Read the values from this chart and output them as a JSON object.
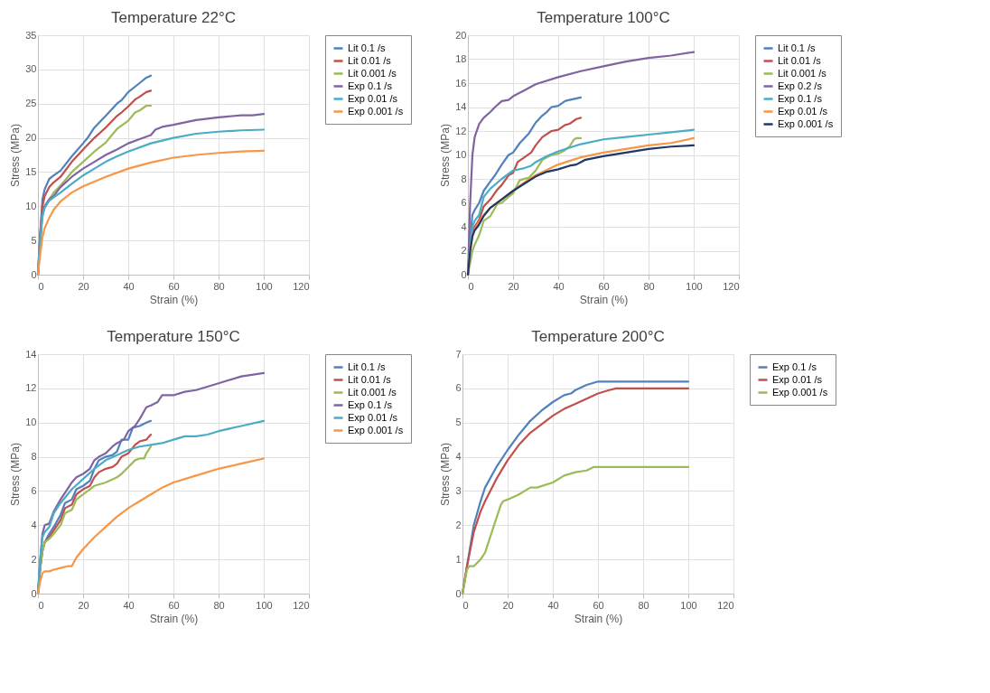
{
  "chart_data": [
    {
      "type": "line",
      "title": "Temperature 22°C",
      "xlabel": "Strain (%)",
      "ylabel": "Stress (MPa)",
      "xlim": [
        0,
        120
      ],
      "xticks": [
        0,
        20,
        40,
        60,
        80,
        100,
        120
      ],
      "ylim": [
        0,
        35
      ],
      "yticks": [
        0,
        5,
        10,
        15,
        20,
        25,
        30,
        35
      ],
      "grid": true,
      "legend": "right",
      "series": [
        {
          "name": "Lit 0.1 /s",
          "color": "#4f81bd",
          "x": [
            0,
            1,
            2,
            3,
            5,
            7,
            10,
            15,
            20,
            22,
            25,
            30,
            35,
            37,
            40,
            45,
            48,
            50
          ],
          "values": [
            0,
            6,
            11,
            12.5,
            14,
            14.5,
            15.2,
            17.3,
            19.2,
            20,
            21.5,
            23.2,
            25,
            25.5,
            26.7,
            28,
            28.8,
            29.1
          ]
        },
        {
          "name": "Lit 0.01 /s",
          "color": "#c0504d",
          "x": [
            0,
            1,
            2,
            3,
            5,
            7,
            10,
            15,
            20,
            25,
            30,
            35,
            37,
            40,
            43,
            45,
            48,
            50
          ],
          "values": [
            0,
            6,
            10,
            11.5,
            12.8,
            13.5,
            14.3,
            16.5,
            18.3,
            20,
            21.5,
            23.2,
            23.7,
            24.6,
            25.6,
            26,
            26.7,
            26.9
          ]
        },
        {
          "name": "Lit 0.001 /s",
          "color": "#9bbb59",
          "x": [
            0,
            1,
            2,
            3,
            5,
            7,
            10,
            15,
            20,
            25,
            30,
            33,
            35,
            40,
            43,
            45,
            48,
            50
          ],
          "values": [
            0,
            5,
            9,
            10,
            11,
            12,
            13,
            15,
            16.5,
            18,
            19.3,
            20.5,
            21.3,
            22.5,
            23.7,
            24,
            24.7,
            24.7
          ]
        },
        {
          "name": "Exp 0.1 /s",
          "color": "#8064a2",
          "x": [
            0,
            1,
            2,
            3,
            5,
            7,
            10,
            15,
            20,
            25,
            30,
            35,
            40,
            45,
            50,
            52,
            55,
            60,
            70,
            80,
            90,
            95,
            100
          ],
          "values": [
            0,
            5,
            9,
            10,
            11,
            11.5,
            12.8,
            14.3,
            15.5,
            16.5,
            17.5,
            18.3,
            19.2,
            19.8,
            20.4,
            21.2,
            21.6,
            21.9,
            22.6,
            23,
            23.3,
            23.3,
            23.5
          ]
        },
        {
          "name": "Exp 0.01 /s",
          "color": "#4bacc6",
          "x": [
            0,
            1,
            2,
            3,
            5,
            7,
            10,
            15,
            20,
            25,
            30,
            35,
            40,
            50,
            60,
            70,
            80,
            90,
            100
          ],
          "values": [
            0,
            5,
            8.5,
            9.8,
            10.8,
            11.3,
            12,
            13.3,
            14.5,
            15.5,
            16.5,
            17.3,
            18,
            19.2,
            20,
            20.6,
            20.9,
            21.1,
            21.2
          ]
        },
        {
          "name": "Exp 0.001 /s",
          "color": "#f79646",
          "x": [
            0,
            1,
            2,
            3,
            5,
            7,
            10,
            15,
            20,
            25,
            30,
            40,
            50,
            60,
            70,
            80,
            90,
            100
          ],
          "values": [
            0,
            3,
            5.5,
            6.8,
            8.3,
            9.5,
            10.7,
            12,
            12.9,
            13.6,
            14.3,
            15.5,
            16.4,
            17.1,
            17.5,
            17.8,
            18,
            18.1
          ]
        }
      ]
    },
    {
      "type": "line",
      "title": "Temperature 100°C",
      "xlabel": "Strain (%)",
      "ylabel": "Stress (MPa)",
      "xlim": [
        0,
        120
      ],
      "xticks": [
        0,
        20,
        40,
        60,
        80,
        100,
        120
      ],
      "ylim": [
        0,
        20
      ],
      "yticks": [
        0,
        2,
        4,
        6,
        8,
        10,
        12,
        14,
        16,
        18,
        20
      ],
      "grid": true,
      "legend": "right",
      "series": [
        {
          "name": "Lit 0.1 /s",
          "color": "#4f81bd",
          "x": [
            0,
            1,
            2,
            3,
            5,
            7,
            10,
            12,
            15,
            18,
            20,
            23,
            27,
            30,
            33,
            35,
            37,
            40,
            43,
            45,
            50
          ],
          "values": [
            0,
            3,
            5,
            5.4,
            6,
            7,
            7.8,
            8.3,
            9.2,
            10,
            10.2,
            11,
            11.8,
            12.7,
            13.3,
            13.6,
            14,
            14.1,
            14.5,
            14.6,
            14.8
          ]
        },
        {
          "name": "Lit 0.01 /s",
          "color": "#c0504d",
          "x": [
            0,
            1,
            2,
            3,
            5,
            7,
            10,
            13,
            15,
            18,
            20,
            22,
            25,
            28,
            30,
            33,
            37,
            40,
            43,
            45,
            48,
            50
          ],
          "values": [
            0,
            2.5,
            3.6,
            4,
            4.6,
            5.7,
            6.3,
            7.1,
            7.5,
            8.3,
            8.5,
            9.4,
            9.8,
            10.2,
            10.8,
            11.5,
            12,
            12.1,
            12.5,
            12.6,
            13,
            13.1
          ]
        },
        {
          "name": "Lit 0.001 /s",
          "color": "#9bbb59",
          "x": [
            0,
            1,
            2,
            3,
            5,
            7,
            10,
            13,
            15,
            18,
            20,
            23,
            27,
            30,
            33,
            37,
            40,
            43,
            45,
            47,
            48,
            50
          ],
          "values": [
            0,
            1,
            2,
            2.5,
            3.3,
            4.5,
            4.9,
            5.9,
            6,
            6.5,
            6.8,
            7.9,
            8.1,
            8.7,
            9.6,
            10,
            10.1,
            10.4,
            10.7,
            11.3,
            11.4,
            11.4
          ]
        },
        {
          "name": "Exp 0.2 /s",
          "color": "#8064a2",
          "x": [
            0,
            1,
            2,
            3,
            5,
            7,
            10,
            12,
            15,
            18,
            20,
            25,
            30,
            40,
            50,
            60,
            70,
            80,
            90,
            100
          ],
          "values": [
            0,
            6,
            10,
            11.5,
            12.6,
            13.1,
            13.6,
            14,
            14.5,
            14.6,
            14.9,
            15.4,
            15.9,
            16.5,
            17,
            17.4,
            17.8,
            18.1,
            18.3,
            18.6
          ]
        },
        {
          "name": "Exp 0.1 /s",
          "color": "#4bacc6",
          "x": [
            0,
            1,
            2,
            3,
            5,
            7,
            10,
            15,
            20,
            25,
            28,
            30,
            35,
            40,
            50,
            60,
            70,
            80,
            90,
            100
          ],
          "values": [
            0,
            2.5,
            4,
            4.5,
            5,
            6.5,
            7.2,
            8,
            8.7,
            8.9,
            9.1,
            9.4,
            9.9,
            10.3,
            10.9,
            11.3,
            11.5,
            11.7,
            11.9,
            12.1
          ]
        },
        {
          "name": "Exp 0.01 /s",
          "color": "#f79646",
          "x": [
            0,
            1,
            2,
            3,
            5,
            7,
            10,
            15,
            20,
            25,
            30,
            40,
            50,
            60,
            70,
            80,
            90,
            100
          ],
          "values": [
            0,
            2,
            3.3,
            3.8,
            4.4,
            5,
            5.6,
            6.3,
            7,
            7.7,
            8.3,
            9.2,
            9.8,
            10.2,
            10.5,
            10.8,
            11,
            11.4
          ]
        },
        {
          "name": "Exp 0.001 /s",
          "color": "#1f3864",
          "x": [
            0,
            1,
            2,
            3,
            5,
            7,
            10,
            15,
            20,
            25,
            30,
            35,
            40,
            45,
            48,
            50,
            52,
            60,
            70,
            80,
            90,
            100
          ],
          "values": [
            0,
            2,
            3.2,
            3.7,
            4.2,
            4.9,
            5.6,
            6.3,
            7,
            7.6,
            8.2,
            8.6,
            8.8,
            9.1,
            9.2,
            9.4,
            9.6,
            9.9,
            10.2,
            10.5,
            10.7,
            10.8
          ]
        }
      ]
    },
    {
      "type": "line",
      "title": "Temperature 150°C",
      "xlabel": "Strain (%)",
      "ylabel": "Stress (MPa)",
      "xlim": [
        0,
        120
      ],
      "xticks": [
        0,
        20,
        40,
        60,
        80,
        100,
        120
      ],
      "ylim": [
        0,
        14
      ],
      "yticks": [
        0,
        2,
        4,
        6,
        8,
        10,
        12,
        14
      ],
      "grid": true,
      "legend": "right",
      "series": [
        {
          "name": "Lit 0.1 /s",
          "color": "#4f81bd",
          "x": [
            0,
            1,
            2,
            3,
            5,
            7,
            10,
            12,
            15,
            17,
            20,
            23,
            25,
            27,
            30,
            33,
            35,
            37,
            40,
            42,
            45,
            48,
            50
          ],
          "values": [
            0,
            1.5,
            2.5,
            3,
            3.5,
            3.9,
            4.6,
            5.3,
            5.5,
            6.1,
            6.3,
            6.6,
            7.3,
            7.8,
            8,
            8.1,
            8.3,
            9,
            9,
            9.7,
            9.8,
            10,
            10.1
          ]
        },
        {
          "name": "Lit 0.01 /s",
          "color": "#c0504d",
          "x": [
            0,
            1,
            2,
            3,
            5,
            7,
            10,
            12,
            15,
            17,
            20,
            23,
            25,
            27,
            30,
            33,
            35,
            37,
            40,
            43,
            45,
            48,
            50
          ],
          "values": [
            0,
            1.5,
            2.5,
            3,
            3.3,
            3.7,
            4.3,
            5,
            5.2,
            5.8,
            6.1,
            6.3,
            6.8,
            7.1,
            7.3,
            7.4,
            7.6,
            8,
            8.2,
            8.7,
            8.9,
            9,
            9.3
          ]
        },
        {
          "name": "Lit 0.001 /s",
          "color": "#9bbb59",
          "x": [
            0,
            1,
            2,
            3,
            5,
            7,
            10,
            12,
            15,
            17,
            20,
            23,
            25,
            30,
            35,
            37,
            40,
            43,
            45,
            47,
            48,
            50
          ],
          "values": [
            0,
            1.5,
            2.5,
            3,
            3.2,
            3.5,
            4,
            4.7,
            4.9,
            5.5,
            5.8,
            6.1,
            6.3,
            6.5,
            6.8,
            7,
            7.4,
            7.8,
            7.9,
            7.9,
            8.2,
            8.6
          ]
        },
        {
          "name": "Exp 0.1 /s",
          "color": "#8064a2",
          "x": [
            0,
            1,
            2,
            3,
            5,
            7,
            10,
            12,
            15,
            17,
            20,
            23,
            25,
            27,
            30,
            33,
            35,
            38,
            40,
            43,
            45,
            48,
            50,
            53,
            55,
            60,
            65,
            70,
            80,
            90,
            100
          ],
          "values": [
            0,
            2,
            3.5,
            4,
            4.1,
            4.8,
            5.5,
            5.9,
            6.5,
            6.8,
            7,
            7.3,
            7.8,
            8,
            8.2,
            8.6,
            8.8,
            9,
            9.5,
            9.8,
            10.2,
            10.9,
            11,
            11.2,
            11.6,
            11.6,
            11.8,
            11.9,
            12.3,
            12.7,
            12.9
          ]
        },
        {
          "name": "Exp 0.01 /s",
          "color": "#4bacc6",
          "x": [
            0,
            1,
            2,
            3,
            5,
            7,
            10,
            15,
            20,
            25,
            30,
            35,
            40,
            45,
            50,
            55,
            60,
            65,
            70,
            75,
            80,
            90,
            100
          ],
          "values": [
            0,
            2,
            3.3,
            3.6,
            3.9,
            4.7,
            5.3,
            6.1,
            6.7,
            7.3,
            7.8,
            8.1,
            8.4,
            8.6,
            8.7,
            8.8,
            9,
            9.2,
            9.2,
            9.3,
            9.5,
            9.8,
            10.1
          ]
        },
        {
          "name": "Exp 0.001 /s",
          "color": "#f79646",
          "x": [
            0,
            1,
            2,
            3,
            5,
            7,
            10,
            13,
            15,
            17,
            20,
            25,
            30,
            35,
            40,
            45,
            50,
            55,
            60,
            70,
            80,
            90,
            100
          ],
          "values": [
            0,
            0.7,
            1.2,
            1.3,
            1.3,
            1.4,
            1.5,
            1.6,
            1.6,
            2.1,
            2.6,
            3.3,
            3.9,
            4.5,
            5,
            5.4,
            5.8,
            6.2,
            6.5,
            6.9,
            7.3,
            7.6,
            7.9
          ]
        }
      ]
    },
    {
      "type": "line",
      "title": "Temperature 200°C",
      "xlabel": "Strain (%)",
      "ylabel": "Stress (MPa)",
      "xlim": [
        0,
        120
      ],
      "xticks": [
        0,
        20,
        40,
        60,
        80,
        100,
        120
      ],
      "ylim": [
        0,
        7
      ],
      "yticks": [
        0,
        1,
        2,
        3,
        4,
        5,
        6,
        7
      ],
      "grid": true,
      "legend": "right",
      "series": [
        {
          "name": "Exp 0.1 /s",
          "color": "#4f81bd",
          "x": [
            0,
            2,
            5,
            8,
            10,
            15,
            20,
            25,
            30,
            35,
            40,
            45,
            48,
            50,
            55,
            60,
            70,
            80,
            90,
            100
          ],
          "values": [
            0,
            0.8,
            2,
            2.7,
            3.1,
            3.7,
            4.2,
            4.65,
            5.05,
            5.35,
            5.6,
            5.8,
            5.85,
            5.95,
            6.1,
            6.2,
            6.2,
            6.2,
            6.2,
            6.2
          ]
        },
        {
          "name": "Exp 0.01 /s",
          "color": "#c0504d",
          "x": [
            0,
            2,
            5,
            8,
            10,
            15,
            20,
            25,
            30,
            35,
            40,
            45,
            50,
            55,
            60,
            65,
            68,
            80,
            90,
            100
          ],
          "values": [
            0,
            0.8,
            1.8,
            2.4,
            2.7,
            3.35,
            3.9,
            4.35,
            4.7,
            4.95,
            5.2,
            5.4,
            5.55,
            5.7,
            5.85,
            5.95,
            6,
            6,
            6,
            6
          ]
        },
        {
          "name": "Exp 0.001 /s",
          "color": "#9bbb59",
          "x": [
            0,
            2,
            3,
            5,
            8,
            10,
            12,
            15,
            17,
            18,
            20,
            25,
            30,
            33,
            40,
            45,
            50,
            55,
            58,
            70,
            80,
            90,
            100
          ],
          "values": [
            0,
            0.7,
            0.8,
            0.8,
            1,
            1.2,
            1.6,
            2.2,
            2.6,
            2.7,
            2.75,
            2.9,
            3.1,
            3.1,
            3.25,
            3.45,
            3.55,
            3.6,
            3.7,
            3.7,
            3.7,
            3.7,
            3.7
          ]
        }
      ]
    }
  ]
}
